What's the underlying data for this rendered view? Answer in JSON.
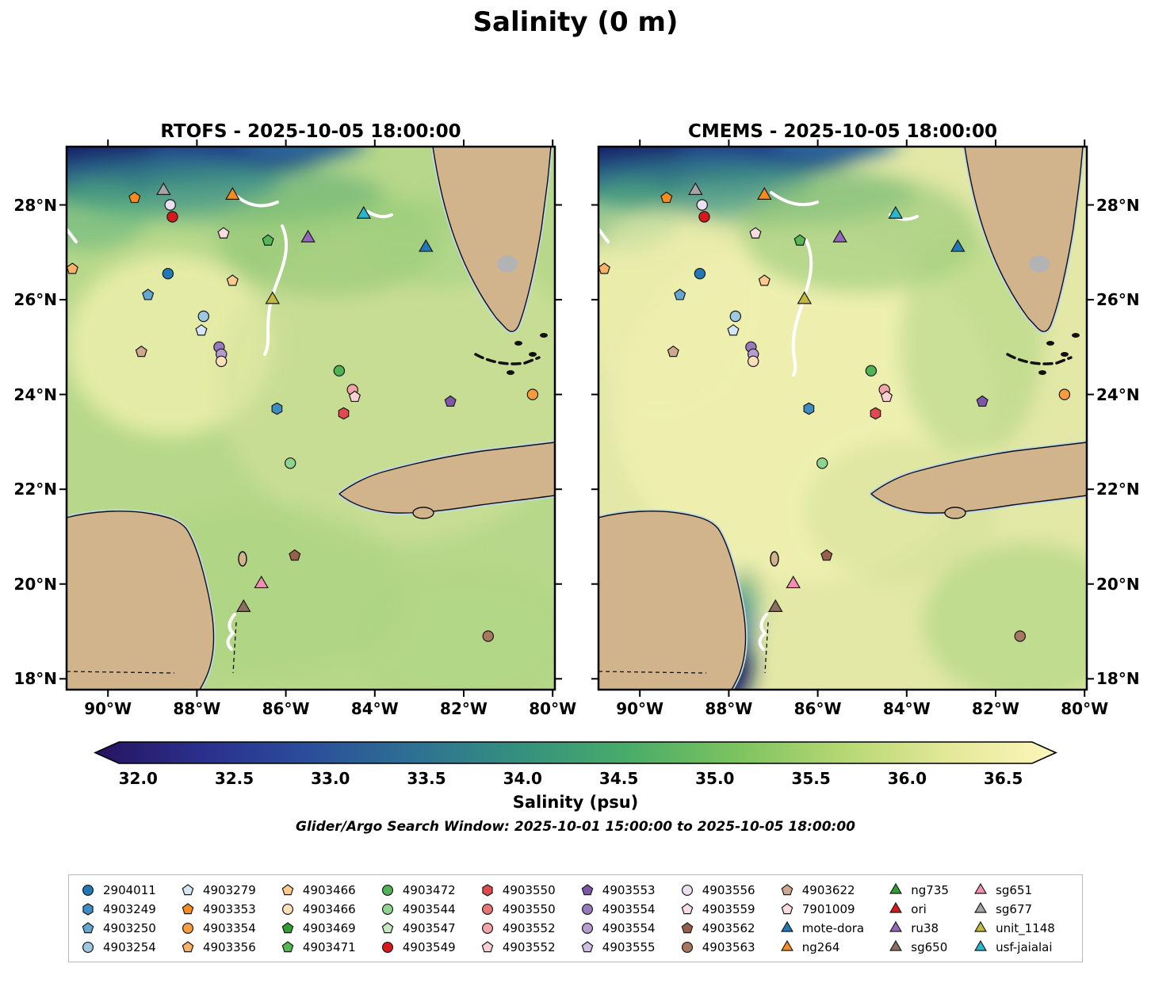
{
  "title": "Salinity (0 m)",
  "panels": [
    {
      "title": "RTOFS - 2025-10-05 18:00:00"
    },
    {
      "title": "CMEMS - 2025-10-05 18:00:00"
    }
  ],
  "subtitle": "Glider/Argo Search Window: 2025-10-01 15:00:00 to 2025-10-05 18:00:00",
  "colorbar": {
    "label": "Salinity (psu)",
    "ticks": [
      32.0,
      32.5,
      33.0,
      33.5,
      34.0,
      34.5,
      35.0,
      35.5,
      36.0,
      36.5
    ],
    "vmin": 31.9,
    "vmax": 36.65,
    "gradient": [
      "#261460",
      "#2b2f8c",
      "#2b4d9b",
      "#2d7193",
      "#35917e",
      "#49ac69",
      "#7cc35f",
      "#b5d773",
      "#e4e898",
      "#fdf6bb"
    ]
  },
  "chart_data": {
    "type": "heatmap",
    "variable": "Salinity (psu)",
    "depth_label": "0 m",
    "models": [
      "RTOFS",
      "CMEMS"
    ],
    "valid_time": "2025-10-05 18:00:00",
    "search_window": "2025-10-01 15:00:00 to 2025-10-05 18:00:00",
    "lon_range": [
      -90.93,
      -79.95
    ],
    "lat_range": [
      17.77,
      29.23
    ],
    "lon_ticks": [
      -90,
      -88,
      -86,
      -84,
      -82,
      -80
    ],
    "lat_ticks": [
      28,
      26,
      24,
      22,
      20,
      18
    ],
    "colorbar_ticks": [
      32.0,
      32.5,
      33.0,
      33.5,
      34.0,
      34.5,
      35.0,
      35.5,
      36.0,
      36.5
    ],
    "markers": [
      {
        "id": "4903353",
        "shape": "pentagon",
        "color": "#f68b1f",
        "lon": -89.4,
        "lat": 28.15
      },
      {
        "id": "sg677",
        "shape": "triangle",
        "color": "#a5a5a5",
        "lon": -88.75,
        "lat": 28.3
      },
      {
        "id": "4903556",
        "shape": "circle",
        "color": "#e9e0f2",
        "lon": -88.6,
        "lat": 28.0
      },
      {
        "id": "4903549",
        "shape": "circle",
        "color": "#d7191c",
        "lon": -88.55,
        "lat": 27.75
      },
      {
        "id": "ng264",
        "shape": "triangle",
        "color": "#f68b1f",
        "lon": -87.2,
        "lat": 28.2
      },
      {
        "id": "usf-jaialai",
        "shape": "triangle",
        "color": "#29b6cf",
        "lon": -84.25,
        "lat": 27.8
      },
      {
        "id": "7901009",
        "shape": "pentagon",
        "color": "#fbdce0",
        "lon": -87.4,
        "lat": 27.4
      },
      {
        "id": "4903471",
        "shape": "pentagon",
        "color": "#54b854",
        "lon": -86.4,
        "lat": 27.25
      },
      {
        "id": "ru38",
        "shape": "triangle",
        "color": "#9467bd",
        "lon": -85.5,
        "lat": 27.3
      },
      {
        "id": "mote-dora",
        "shape": "triangle",
        "color": "#2278b5",
        "lon": -82.85,
        "lat": 27.1
      },
      {
        "id": "4903356",
        "shape": "pentagon",
        "color": "#fbb264",
        "lon": -90.8,
        "lat": 26.65
      },
      {
        "id": "2904011",
        "shape": "circle",
        "color": "#2278b5",
        "lon": -88.65,
        "lat": 26.55
      },
      {
        "id": "4903466",
        "shape": "pentagon",
        "color": "#fdc98c",
        "lon": -87.2,
        "lat": 26.4
      },
      {
        "id": "4903250",
        "shape": "pentagon",
        "color": "#62a8d2",
        "lon": -89.1,
        "lat": 26.1
      },
      {
        "id": "unit_1148",
        "shape": "triangle",
        "color": "#c2bb3d",
        "lon": -86.3,
        "lat": 26.0
      },
      {
        "id": "4903254",
        "shape": "circle",
        "color": "#9ecae1",
        "lon": -87.85,
        "lat": 25.65
      },
      {
        "id": "4903279",
        "shape": "pentagon",
        "color": "#d4e7f4",
        "lon": -87.9,
        "lat": 25.35
      },
      {
        "id": "4903622",
        "shape": "pentagon",
        "color": "#cfa98f",
        "lon": -89.25,
        "lat": 24.9
      },
      {
        "id": "4903554",
        "shape": "circle",
        "color": "#9878bf",
        "lon": -87.5,
        "lat": 25.0
      },
      {
        "id": "4903554",
        "shape": "circle",
        "color": "#b79cd1",
        "lon": -87.45,
        "lat": 24.85
      },
      {
        "id": "4903466",
        "shape": "circle",
        "color": "#fde0bb",
        "lon": -87.45,
        "lat": 24.7
      },
      {
        "id": "4903472",
        "shape": "circle",
        "color": "#4db354",
        "lon": -84.8,
        "lat": 24.5
      },
      {
        "id": "4903552",
        "shape": "circle",
        "color": "#f4a3a6",
        "lon": -84.5,
        "lat": 24.1
      },
      {
        "id": "4903552",
        "shape": "pentagon",
        "color": "#fbd0d2",
        "lon": -84.45,
        "lat": 23.95
      },
      {
        "id": "4903553",
        "shape": "pentagon",
        "color": "#7e57a8",
        "lon": -82.3,
        "lat": 23.85
      },
      {
        "id": "4903354",
        "shape": "circle",
        "color": "#fa9b3d",
        "lon": -80.45,
        "lat": 24.0
      },
      {
        "id": "4903249",
        "shape": "hexagon",
        "color": "#3d8ec4",
        "lon": -86.2,
        "lat": 23.7
      },
      {
        "id": "4903550",
        "shape": "hexagon",
        "color": "#e04a4e",
        "lon": -84.7,
        "lat": 23.6
      },
      {
        "id": "4903544",
        "shape": "circle",
        "color": "#8ed48f",
        "lon": -85.9,
        "lat": 22.55
      },
      {
        "id": "4903562",
        "shape": "pentagon",
        "color": "#96604a",
        "lon": -85.8,
        "lat": 20.6
      },
      {
        "id": "sg651",
        "shape": "triangle",
        "color": "#f48fb1",
        "lon": -86.55,
        "lat": 20.0
      },
      {
        "id": "sg650",
        "shape": "triangle",
        "color": "#8d6e63",
        "lon": -86.95,
        "lat": 19.5
      },
      {
        "id": "4903563",
        "shape": "circle",
        "color": "#a9765f",
        "lon": -81.45,
        "lat": 18.9
      }
    ]
  },
  "legend": {
    "items": [
      {
        "label": "2904011",
        "shape": "circle",
        "color": "#2278b5"
      },
      {
        "label": "4903249",
        "shape": "hexagon",
        "color": "#3d8ec4"
      },
      {
        "label": "4903250",
        "shape": "pentagon",
        "color": "#62a8d2"
      },
      {
        "label": "4903254",
        "shape": "circle",
        "color": "#9ecae1"
      },
      {
        "label": "4903279",
        "shape": "pentagon",
        "color": "#d4e7f4"
      },
      {
        "label": "4903353",
        "shape": "pentagon",
        "color": "#f68b1f"
      },
      {
        "label": "4903354",
        "shape": "circle",
        "color": "#fa9b3d"
      },
      {
        "label": "4903356",
        "shape": "pentagon",
        "color": "#fbb264"
      },
      {
        "label": "4903466",
        "shape": "pentagon",
        "color": "#fdc98c"
      },
      {
        "label": "4903466",
        "shape": "circle",
        "color": "#fde0bb"
      },
      {
        "label": "4903469",
        "shape": "pentagon",
        "color": "#2f9e33"
      },
      {
        "label": "4903471",
        "shape": "pentagon",
        "color": "#54b854"
      },
      {
        "label": "4903472",
        "shape": "circle",
        "color": "#4db354"
      },
      {
        "label": "4903544",
        "shape": "circle",
        "color": "#8ed48f"
      },
      {
        "label": "4903547",
        "shape": "pentagon",
        "color": "#c4e8c2"
      },
      {
        "label": "4903549",
        "shape": "circle",
        "color": "#d7191c"
      },
      {
        "label": "4903550",
        "shape": "hexagon",
        "color": "#e04a4e"
      },
      {
        "label": "4903550",
        "shape": "circle",
        "color": "#ea7578"
      },
      {
        "label": "4903552",
        "shape": "circle",
        "color": "#f4a3a6"
      },
      {
        "label": "4903552",
        "shape": "pentagon",
        "color": "#fbd0d2"
      },
      {
        "label": "4903553",
        "shape": "pentagon",
        "color": "#7e57a8"
      },
      {
        "label": "4903554",
        "shape": "circle",
        "color": "#9878bf"
      },
      {
        "label": "4903554",
        "shape": "circle",
        "color": "#b79cd1"
      },
      {
        "label": "4903555",
        "shape": "pentagon",
        "color": "#d0bee3"
      },
      {
        "label": "4903556",
        "shape": "circle",
        "color": "#e9e0f2"
      },
      {
        "label": "4903559",
        "shape": "pentagon",
        "color": "#f6dce6"
      },
      {
        "label": "4903562",
        "shape": "pentagon",
        "color": "#96604a"
      },
      {
        "label": "4903563",
        "shape": "circle",
        "color": "#a9765f"
      },
      {
        "label": "4903622",
        "shape": "pentagon",
        "color": "#cfa98f"
      },
      {
        "label": "7901009",
        "shape": "pentagon",
        "color": "#fbdce0"
      },
      {
        "label": "mote-dora",
        "shape": "triangle",
        "color": "#2278b5"
      },
      {
        "label": "ng264",
        "shape": "triangle",
        "color": "#f68b1f"
      },
      {
        "label": "ng735",
        "shape": "triangle",
        "color": "#2f9e33"
      },
      {
        "label": "ori",
        "shape": "triangle",
        "color": "#d7191c"
      },
      {
        "label": "ru38",
        "shape": "triangle",
        "color": "#9467bd"
      },
      {
        "label": "sg650",
        "shape": "triangle",
        "color": "#8d6e63"
      },
      {
        "label": "sg651",
        "shape": "triangle",
        "color": "#f48fb1"
      },
      {
        "label": "sg677",
        "shape": "triangle",
        "color": "#a5a5a5"
      },
      {
        "label": "unit_1148",
        "shape": "triangle",
        "color": "#c2bb3d"
      },
      {
        "label": "usf-jaialai",
        "shape": "triangle",
        "color": "#29b6cf"
      }
    ]
  }
}
